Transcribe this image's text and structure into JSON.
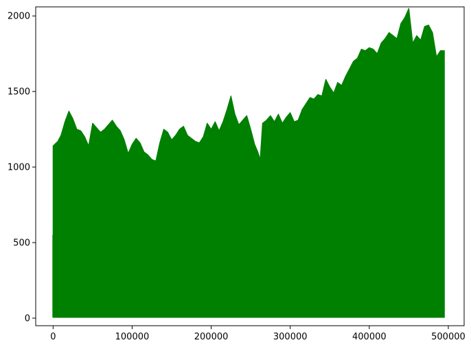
{
  "chart_data": {
    "type": "area",
    "title": "",
    "xlabel": "",
    "ylabel": "",
    "xlim": [
      -22000,
      520000
    ],
    "ylim": [
      -50,
      2060
    ],
    "xticks": [
      0,
      100000,
      200000,
      300000,
      400000,
      500000
    ],
    "xtick_labels": [
      "0",
      "100000",
      "200000",
      "300000",
      "400000",
      "500000"
    ],
    "yticks": [
      0,
      500,
      1000,
      1500,
      2000
    ],
    "ytick_labels": [
      "0",
      "500",
      "1000",
      "1500",
      "2000"
    ],
    "grid": false,
    "legend": "none",
    "series": [
      {
        "color": "#008000",
        "baseline": 5,
        "x": [
          0,
          2000,
          6000,
          10000,
          15000,
          20000,
          25000,
          30000,
          35000,
          40000,
          45000,
          50000,
          55000,
          60000,
          65000,
          70000,
          75000,
          80000,
          85000,
          90000,
          95000,
          100000,
          105000,
          110000,
          115000,
          120000,
          125000,
          130000,
          135000,
          140000,
          145000,
          150000,
          155000,
          160000,
          165000,
          170000,
          175000,
          180000,
          185000,
          190000,
          195000,
          200000,
          205000,
          210000,
          215000,
          220000,
          225000,
          230000,
          235000,
          240000,
          245000,
          250000,
          255000,
          259000,
          262000,
          265000,
          270000,
          275000,
          280000,
          285000,
          290000,
          295000,
          300000,
          305000,
          310000,
          315000,
          320000,
          325000,
          330000,
          335000,
          340000,
          345000,
          350000,
          355000,
          360000,
          365000,
          370000,
          375000,
          380000,
          385000,
          390000,
          395000,
          400000,
          405000,
          410000,
          415000,
          420000,
          425000,
          430000,
          435000,
          440000,
          445000,
          450000,
          455000,
          460000,
          465000,
          470000,
          475000,
          480000,
          485000,
          490000,
          495000
        ],
        "values": [
          1140,
          1150,
          1170,
          1210,
          1300,
          1370,
          1320,
          1250,
          1240,
          1200,
          1140,
          1290,
          1260,
          1230,
          1250,
          1280,
          1310,
          1270,
          1240,
          1180,
          1090,
          1150,
          1190,
          1160,
          1100,
          1080,
          1050,
          1040,
          1160,
          1250,
          1230,
          1180,
          1210,
          1250,
          1270,
          1210,
          1190,
          1170,
          1160,
          1200,
          1290,
          1250,
          1300,
          1240,
          1300,
          1380,
          1470,
          1350,
          1280,
          1310,
          1340,
          1250,
          1150,
          1100,
          1050,
          1290,
          1310,
          1340,
          1300,
          1350,
          1290,
          1330,
          1360,
          1300,
          1310,
          1380,
          1420,
          1460,
          1450,
          1480,
          1470,
          1580,
          1530,
          1490,
          1560,
          1540,
          1600,
          1650,
          1700,
          1720,
          1780,
          1770,
          1790,
          1780,
          1750,
          1820,
          1850,
          1890,
          1870,
          1850,
          1950,
          1990,
          2050,
          1820,
          1870,
          1840,
          1930,
          1940,
          1890,
          1730,
          1770,
          1770
        ]
      }
    ]
  }
}
